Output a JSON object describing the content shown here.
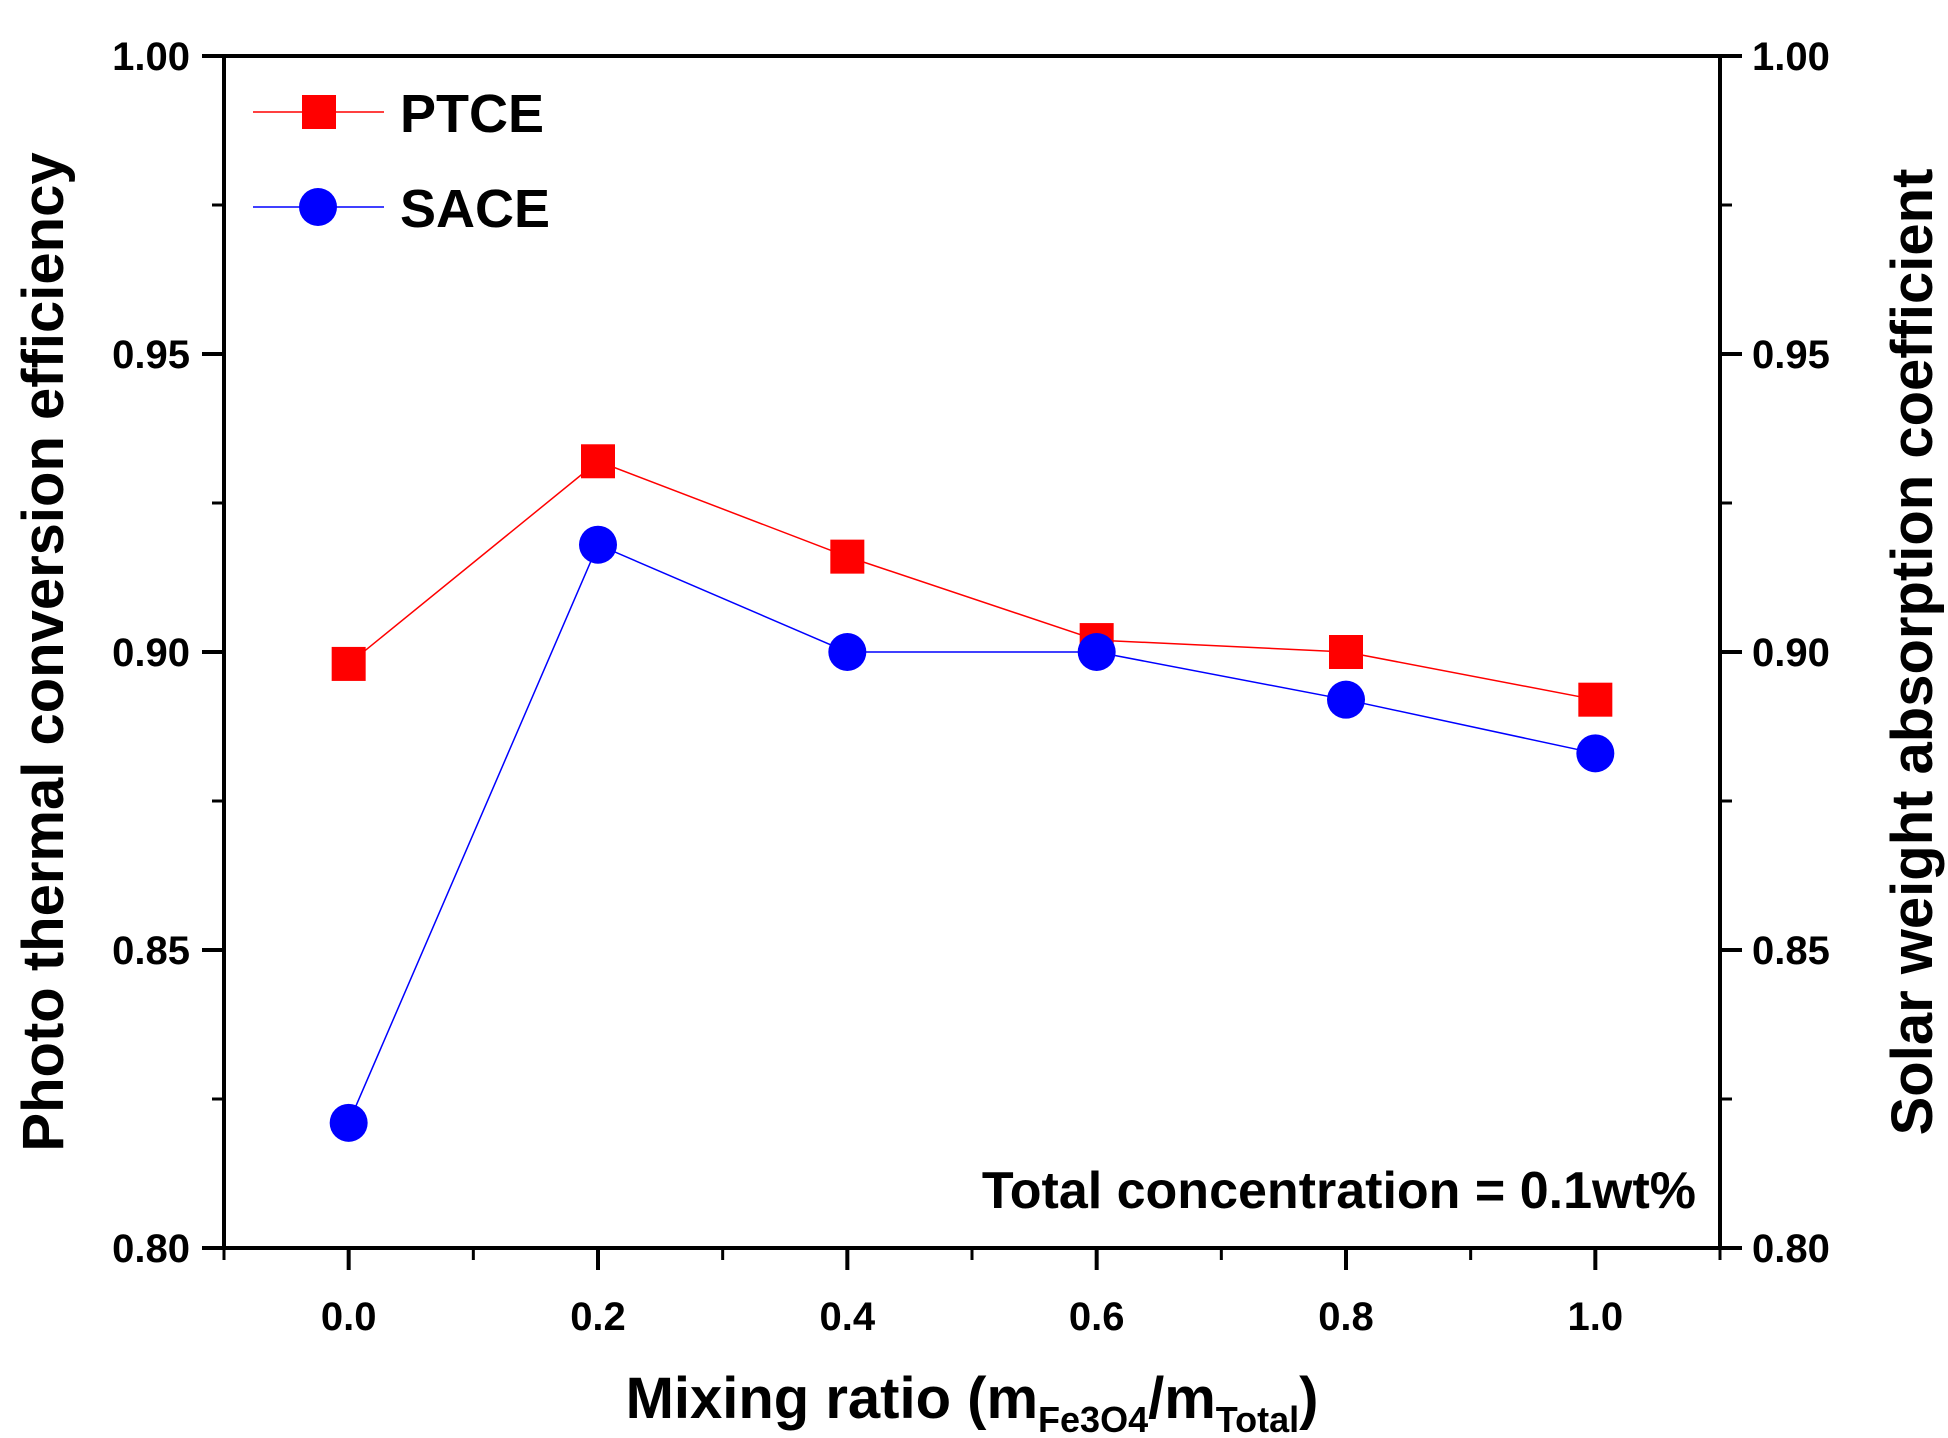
{
  "chart_data": {
    "type": "line",
    "title": "",
    "xlabel": "Mixing ratio (m",
    "xlabel_sub1": "Fe3O4",
    "xlabel_mid": "/m",
    "xlabel_sub2": "Total",
    "xlabel_end": ")",
    "ylabel": "Photo thermal conversion efficiency",
    "y2label": "Solar weight absorption coefficient",
    "xlim": [
      -0.1,
      1.1
    ],
    "ylim": [
      0.8,
      1.0
    ],
    "y2lim": [
      0.8,
      1.0
    ],
    "x": [
      0.0,
      0.2,
      0.4,
      0.6,
      0.8,
      1.0
    ],
    "xticks": [
      "0.0",
      "0.2",
      "0.4",
      "0.6",
      "0.8",
      "1.0"
    ],
    "yticks": [
      "0.80",
      "0.85",
      "0.90",
      "0.95",
      "1.00"
    ],
    "y2ticks": [
      "0.80",
      "0.85",
      "0.90",
      "0.95",
      "1.00"
    ],
    "series": [
      {
        "name": "PTCE",
        "values": [
          0.898,
          0.932,
          0.916,
          0.902,
          0.9,
          0.892
        ],
        "color": "#ff0000",
        "marker": "square"
      },
      {
        "name": "SACE",
        "values": [
          0.821,
          0.918,
          0.9,
          0.9,
          0.892,
          0.883
        ],
        "color": "#0000ff",
        "marker": "circle"
      }
    ],
    "legend": "top-left",
    "annotation": "Total concentration = 0.1wt%",
    "grid": false
  }
}
